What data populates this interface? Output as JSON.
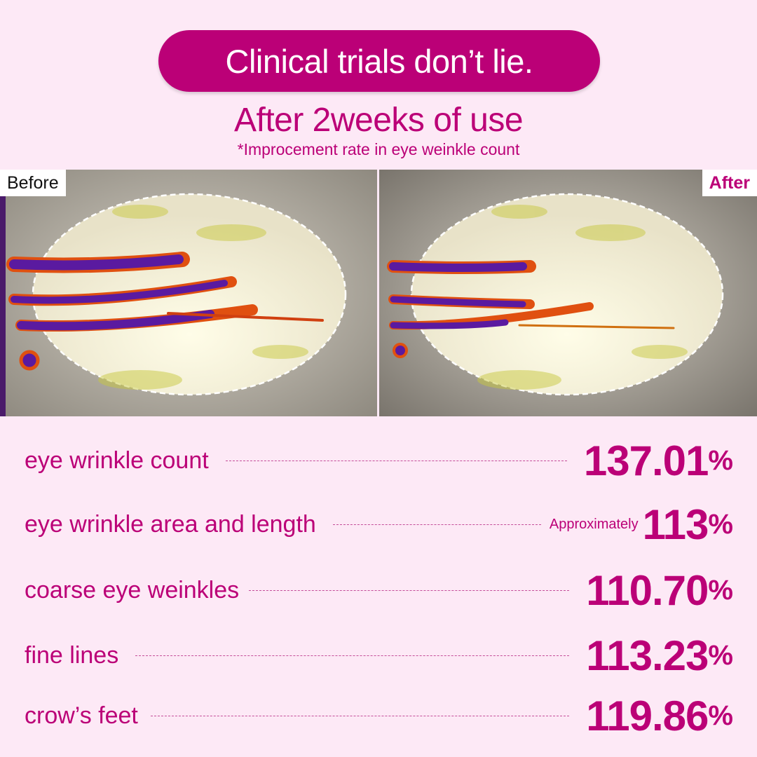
{
  "header": {
    "badge": "Clinical trials don’t lie.",
    "title": "After 2weeks of use",
    "subtitle": "*Improcement rate in eye weinkle count"
  },
  "images": {
    "before_label": "Before",
    "after_label": "After"
  },
  "results": [
    {
      "label": "eye wrinkle count",
      "prefix": "",
      "value": "137.01",
      "unit": "%"
    },
    {
      "label": "eye wrinkle area and length",
      "prefix": "Approximately",
      "value": "113",
      "unit": "%"
    },
    {
      "label": "coarse eye weinkles",
      "prefix": "",
      "value": "110.70",
      "unit": "%"
    },
    {
      "label": "fine lines",
      "prefix": "",
      "value": "113.23",
      "unit": "%"
    },
    {
      "label": "crow’s feet",
      "prefix": "",
      "value": "119.86",
      "unit": "%"
    }
  ],
  "colors": {
    "accent": "#bb0077",
    "background": "#fde9f6"
  }
}
